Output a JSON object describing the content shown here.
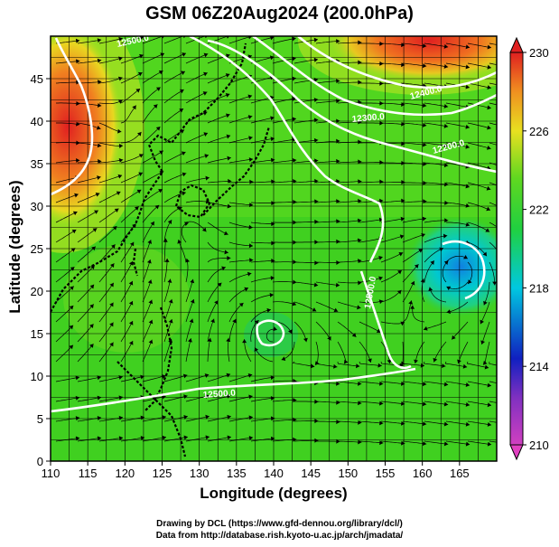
{
  "title": "GSM 06Z20Aug2024 (200.0hPa)",
  "xlabel": "Longitude (degrees)",
  "ylabel": "Latitude (degrees)",
  "credits": {
    "line1": "Drawing by DCL (https://www.gfd-dennou.org/library/dcl/)",
    "line2": "Data from http://database.rish.kyoto-u.ac.jp/arch/jmadata/"
  },
  "chart_data": {
    "type": "heatmap",
    "xlim": [
      110,
      170
    ],
    "ylim": [
      0,
      50
    ],
    "x_ticks": [
      "110",
      "115",
      "120",
      "125",
      "130",
      "135",
      "140",
      "145",
      "150",
      "155",
      "160",
      "165"
    ],
    "y_ticks": [
      "0",
      "5",
      "10",
      "15",
      "20",
      "25",
      "30",
      "35",
      "40",
      "45"
    ],
    "colorbar": {
      "min": 210,
      "max": 230,
      "tick_labels": [
        "210",
        "214",
        "218",
        "222",
        "226",
        "230"
      ]
    },
    "contour_labels": [
      "12500.0",
      "12400.0",
      "12300.0",
      "12200.0",
      "12500.0",
      "12500.0"
    ],
    "colors": {
      "low": "#d040c0",
      "blue": "#1020c0",
      "cyan": "#00c8e0",
      "green": "#30d020",
      "yellow": "#e8e020",
      "orange": "#f0a020",
      "red": "#e02020"
    }
  }
}
